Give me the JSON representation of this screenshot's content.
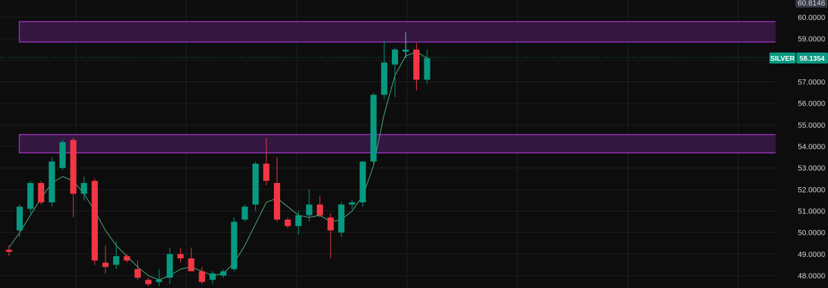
{
  "symbol_label": "SILVER",
  "price_label": "58.1354",
  "top_price_label": "60.8146",
  "colors": {
    "background": "#0d0d0d",
    "grid": "#1c1f26",
    "up": "#089981",
    "down": "#f23645",
    "zone_fill": "#3b1a4a",
    "zone_border": "#b23ad6",
    "current_line": "#089981",
    "tick_text": "#d1d4dc",
    "badge_bg": "#089981",
    "badge_text": "#ffffff",
    "label_bg": "#363a45",
    "axis_bg": "#0d0d0d",
    "ma_line": "#56c28a",
    "wick_highlight": "#4fc3f7"
  },
  "chart_data": {
    "type": "candlestick",
    "title": "",
    "ylim": [
      47.8,
      60.8
    ],
    "y_ticks": [
      "60.0000",
      "59.0000",
      "58.0000",
      "57.0000",
      "56.0000",
      "55.0000",
      "54.0000",
      "53.0000",
      "52.0000",
      "51.0000",
      "50.0000",
      "49.0000",
      "48.0000"
    ],
    "y_tick_values": [
      60,
      59,
      58,
      57,
      56,
      55,
      54,
      53,
      52,
      51,
      50,
      49,
      48
    ],
    "current_price": 58.1354,
    "grid": true,
    "zones": [
      {
        "low": 58.85,
        "high": 59.8
      },
      {
        "low": 53.7,
        "high": 54.55
      }
    ],
    "candles": [
      {
        "o": 49.2,
        "h": 49.4,
        "l": 48.9,
        "c": 49.1
      },
      {
        "o": 50.1,
        "h": 51.3,
        "l": 49.8,
        "c": 51.2
      },
      {
        "o": 51.1,
        "h": 52.4,
        "l": 50.9,
        "c": 52.3
      },
      {
        "o": 52.3,
        "h": 52.4,
        "l": 51.3,
        "c": 51.4
      },
      {
        "o": 51.4,
        "h": 53.5,
        "l": 51.2,
        "c": 53.3
      },
      {
        "o": 53.0,
        "h": 54.3,
        "l": 52.9,
        "c": 54.2
      },
      {
        "o": 54.3,
        "h": 54.4,
        "l": 50.7,
        "c": 51.8
      },
      {
        "o": 51.8,
        "h": 52.6,
        "l": 51.5,
        "c": 52.3
      },
      {
        "o": 52.4,
        "h": 52.5,
        "l": 48.5,
        "c": 48.7
      },
      {
        "o": 48.6,
        "h": 49.4,
        "l": 48.1,
        "c": 48.4
      },
      {
        "o": 48.5,
        "h": 49.6,
        "l": 48.3,
        "c": 48.9
      },
      {
        "o": 48.9,
        "h": 49.0,
        "l": 48.6,
        "c": 48.7
      },
      {
        "o": 48.3,
        "h": 48.7,
        "l": 47.8,
        "c": 47.9
      },
      {
        "o": 47.8,
        "h": 47.9,
        "l": 47.5,
        "c": 47.6
      },
      {
        "o": 47.7,
        "h": 48.3,
        "l": 47.5,
        "c": 47.8
      },
      {
        "o": 47.9,
        "h": 49.3,
        "l": 47.6,
        "c": 49.0
      },
      {
        "o": 49.0,
        "h": 49.3,
        "l": 48.6,
        "c": 48.8
      },
      {
        "o": 48.8,
        "h": 49.3,
        "l": 48.2,
        "c": 48.2
      },
      {
        "o": 48.2,
        "h": 48.4,
        "l": 47.6,
        "c": 47.7
      },
      {
        "o": 47.8,
        "h": 48.2,
        "l": 47.6,
        "c": 48.1
      },
      {
        "o": 48.0,
        "h": 48.3,
        "l": 47.9,
        "c": 48.2
      },
      {
        "o": 48.3,
        "h": 50.7,
        "l": 48.2,
        "c": 50.5
      },
      {
        "o": 50.6,
        "h": 51.3,
        "l": 50.5,
        "c": 51.2
      },
      {
        "o": 51.3,
        "h": 53.3,
        "l": 51.0,
        "c": 53.2
      },
      {
        "o": 53.2,
        "h": 54.4,
        "l": 52.2,
        "c": 52.4
      },
      {
        "o": 52.3,
        "h": 53.5,
        "l": 50.5,
        "c": 50.6
      },
      {
        "o": 50.6,
        "h": 50.7,
        "l": 50.2,
        "c": 50.3
      },
      {
        "o": 50.3,
        "h": 51.0,
        "l": 49.9,
        "c": 50.8
      },
      {
        "o": 50.8,
        "h": 52.0,
        "l": 50.5,
        "c": 51.3
      },
      {
        "o": 51.3,
        "h": 51.7,
        "l": 50.7,
        "c": 50.8
      },
      {
        "o": 50.7,
        "h": 50.9,
        "l": 48.8,
        "c": 50.1
      },
      {
        "o": 50.0,
        "h": 51.4,
        "l": 49.8,
        "c": 51.3
      },
      {
        "o": 51.3,
        "h": 51.5,
        "l": 51.1,
        "c": 51.4
      },
      {
        "o": 51.4,
        "h": 53.3,
        "l": 51.2,
        "c": 53.3
      },
      {
        "o": 53.3,
        "h": 56.5,
        "l": 53.2,
        "c": 56.4
      },
      {
        "o": 56.4,
        "h": 58.9,
        "l": 56.2,
        "c": 57.9
      },
      {
        "o": 57.8,
        "h": 58.6,
        "l": 56.3,
        "c": 58.5
      },
      {
        "o": 58.4,
        "h": 59.3,
        "l": 58.1,
        "c": 58.5
      },
      {
        "o": 58.5,
        "h": 58.8,
        "l": 56.6,
        "c": 57.1
      },
      {
        "o": 57.1,
        "h": 58.5,
        "l": 56.9,
        "c": 58.1
      }
    ],
    "ma_line": [
      49.3,
      50.0,
      50.8,
      51.6,
      52.3,
      52.6,
      52.4,
      51.8,
      51.0,
      50.1,
      49.4,
      48.9,
      48.4,
      48.0,
      47.8,
      48.0,
      48.3,
      48.4,
      48.2,
      48.0,
      48.1,
      48.6,
      49.4,
      50.4,
      51.4,
      51.6,
      51.2,
      50.8,
      50.7,
      50.8,
      50.5,
      50.6,
      51.0,
      51.7,
      53.1,
      55.5,
      57.3,
      58.2,
      58.4,
      58.1
    ]
  }
}
